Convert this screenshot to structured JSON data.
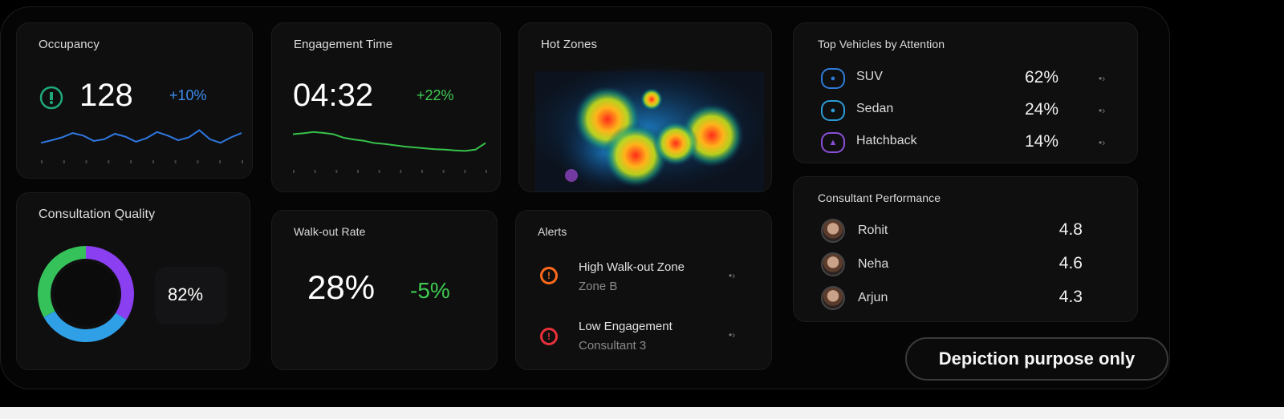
{
  "occupancy": {
    "title": "Occupancy",
    "value": "128",
    "delta": "+10%",
    "trend": [
      0.35,
      0.42,
      0.5,
      0.62,
      0.55,
      0.4,
      0.45,
      0.6,
      0.52,
      0.38,
      0.48,
      0.65,
      0.55,
      0.42,
      0.5,
      0.7,
      0.45,
      0.35,
      0.5,
      0.62
    ]
  },
  "engagement": {
    "title": "Engagement Time",
    "value": "04:32",
    "delta": "+22%",
    "trend": [
      0.7,
      0.72,
      0.75,
      0.73,
      0.7,
      0.62,
      0.58,
      0.55,
      0.5,
      0.48,
      0.45,
      0.42,
      0.4,
      0.38,
      0.36,
      0.35,
      0.33,
      0.32,
      0.35,
      0.5
    ]
  },
  "hot_zones": {
    "title": "Hot Zones"
  },
  "top_vehicles": {
    "title": "Top Vehicles by Attention",
    "items": [
      {
        "label": "SUV",
        "value": "62%",
        "color": "#2e7bd6"
      },
      {
        "label": "Sedan",
        "value": "24%",
        "color": "#2e9bd6"
      },
      {
        "label": "Hatchback",
        "value": "14%",
        "color": "#8a4fd8"
      }
    ]
  },
  "consultation": {
    "title": "Consultation Quality",
    "value": "82%",
    "segments": [
      {
        "fraction": 0.34,
        "color": "#8a3ff0"
      },
      {
        "fraction": 0.33,
        "color": "#2fa0e6"
      },
      {
        "fraction": 0.33,
        "color": "#36c25a"
      }
    ]
  },
  "walkout": {
    "title": "Walk-out Rate",
    "value": "28%",
    "delta": "-5%"
  },
  "alerts": {
    "title": "Alerts",
    "items": [
      {
        "title": "High Walk-out Zone",
        "sub": "Zone B",
        "color": "#ff6a1a"
      },
      {
        "title": "Low Engagement",
        "sub": "Consultant 3",
        "color": "#e8313a"
      }
    ]
  },
  "consultants": {
    "title": "Consultant Performance",
    "items": [
      {
        "name": "Rohit",
        "score": "4.8"
      },
      {
        "name": "Neha",
        "score": "4.6"
      },
      {
        "name": "Arjun",
        "score": "4.3"
      }
    ]
  },
  "footer": {
    "badge": "Depiction purpose only"
  }
}
